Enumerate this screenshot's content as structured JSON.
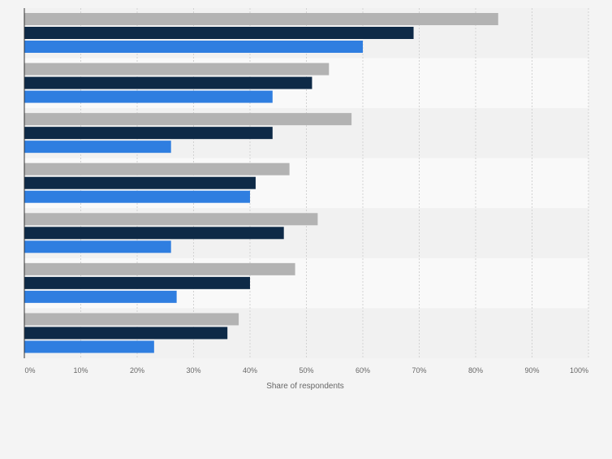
{
  "chart_data": {
    "type": "bar",
    "orientation": "horizontal",
    "categories": [
      "",
      "",
      "",
      "",
      "",
      "",
      ""
    ],
    "series": [
      {
        "values": [
          84,
          54,
          58,
          47,
          52,
          48,
          38
        ]
      },
      {
        "values": [
          69,
          51,
          44,
          41,
          46,
          40,
          36
        ]
      },
      {
        "values": [
          60,
          44,
          26,
          40,
          26,
          27,
          23
        ]
      }
    ],
    "xlabel": "Share of respondents",
    "ylabel": "",
    "xlim": [
      0,
      100
    ],
    "x_ticks": [
      "0%",
      "10%",
      "20%",
      "30%",
      "40%",
      "50%",
      "60%",
      "70%",
      "80%",
      "90%",
      "100%"
    ],
    "grid": true,
    "legend": "none"
  },
  "colors": {
    "series": [
      "#b3b3b3",
      "#0e2a47",
      "#2f7ee0"
    ],
    "band_dark": "#f1f1f1",
    "band_light": "#f9f9f9",
    "grid": "#d2d2d2",
    "axis": "#333333",
    "text": "#666666"
  }
}
